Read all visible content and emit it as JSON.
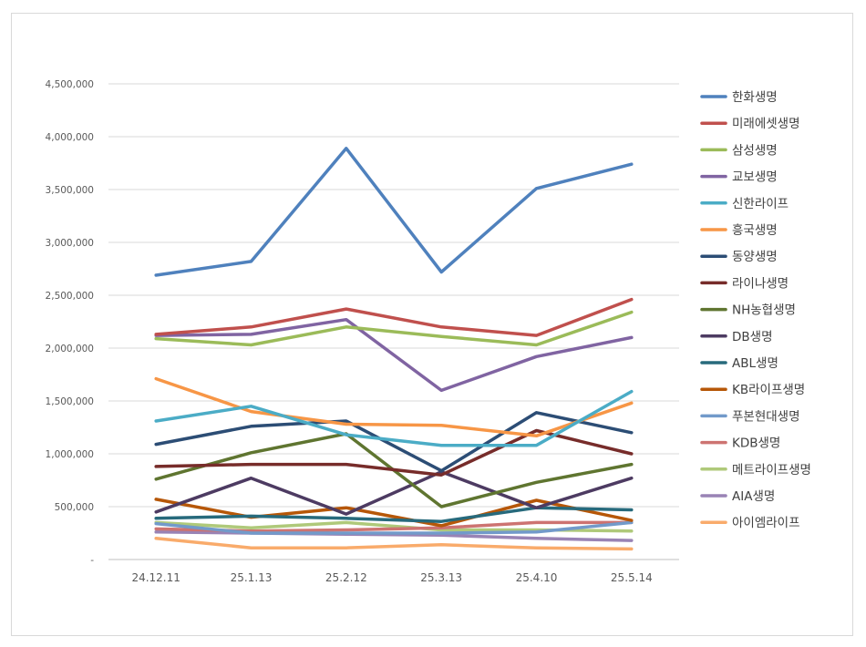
{
  "chart_data": {
    "type": "line",
    "title": "",
    "xlabel": "",
    "ylabel": "",
    "categories": [
      "24.12.11",
      "25.1.13",
      "25.2.12",
      "25.3.13",
      "25.4.10",
      "25.5.14"
    ],
    "ylim": [
      0,
      4500000
    ],
    "yticks": [
      0,
      500000,
      1000000,
      1500000,
      2000000,
      2500000,
      3000000,
      3500000,
      4000000,
      4500000
    ],
    "ytick_labels": [
      "-",
      "500,000",
      "1,000,000",
      "1,500,000",
      "2,000,000",
      "2,500,000",
      "3,000,000",
      "3,500,000",
      "4,000,000",
      "4,500,000"
    ],
    "grid": true,
    "legend_position": "right",
    "series": [
      {
        "name": "한화생명",
        "color": "#4f81bd",
        "values": [
          2690000,
          2820000,
          3890000,
          2720000,
          3510000,
          3740000
        ]
      },
      {
        "name": "미래에셋생명",
        "color": "#c0504d",
        "values": [
          2130000,
          2200000,
          2370000,
          2200000,
          2120000,
          2460000
        ]
      },
      {
        "name": "삼성생명",
        "color": "#9bbb59",
        "values": [
          2090000,
          2030000,
          2200000,
          2110000,
          2030000,
          2340000
        ]
      },
      {
        "name": "교보생명",
        "color": "#8064a2",
        "values": [
          2120000,
          2130000,
          2270000,
          1600000,
          1920000,
          2100000
        ]
      },
      {
        "name": "신한라이프",
        "color": "#4bacc6",
        "values": [
          1310000,
          1450000,
          1180000,
          1080000,
          1080000,
          1590000
        ]
      },
      {
        "name": "흥국생명",
        "color": "#f79646",
        "values": [
          1710000,
          1400000,
          1280000,
          1270000,
          1170000,
          1480000
        ]
      },
      {
        "name": "동양생명",
        "color": "#2c4d75",
        "values": [
          1090000,
          1260000,
          1310000,
          840000,
          1390000,
          1200000
        ]
      },
      {
        "name": "라이나생명",
        "color": "#772c2a",
        "values": [
          880000,
          900000,
          900000,
          800000,
          1220000,
          1000000
        ]
      },
      {
        "name": "NH농협생명",
        "color": "#5f7530",
        "values": [
          760000,
          1010000,
          1190000,
          500000,
          730000,
          900000
        ]
      },
      {
        "name": "DB생명",
        "color": "#4d3b62",
        "values": [
          450000,
          770000,
          430000,
          830000,
          490000,
          770000
        ]
      },
      {
        "name": "ABL생명",
        "color": "#276a7c",
        "values": [
          390000,
          410000,
          390000,
          360000,
          490000,
          470000
        ]
      },
      {
        "name": "KB라이프생명",
        "color": "#b65708",
        "values": [
          570000,
          400000,
          490000,
          320000,
          560000,
          370000
        ]
      },
      {
        "name": "푸본현대생명",
        "color": "#729aca",
        "values": [
          340000,
          250000,
          250000,
          250000,
          260000,
          350000
        ]
      },
      {
        "name": "KDB생명",
        "color": "#cd7371",
        "values": [
          290000,
          270000,
          280000,
          300000,
          350000,
          350000
        ]
      },
      {
        "name": "메트라이프생명",
        "color": "#afc97a",
        "values": [
          350000,
          300000,
          350000,
          280000,
          280000,
          270000
        ]
      },
      {
        "name": "AIA생명",
        "color": "#9983b5",
        "values": [
          260000,
          250000,
          240000,
          230000,
          200000,
          180000
        ]
      },
      {
        "name": "아이엠라이프",
        "color": "#f9ab6b",
        "values": [
          200000,
          110000,
          110000,
          140000,
          110000,
          100000
        ]
      }
    ]
  }
}
